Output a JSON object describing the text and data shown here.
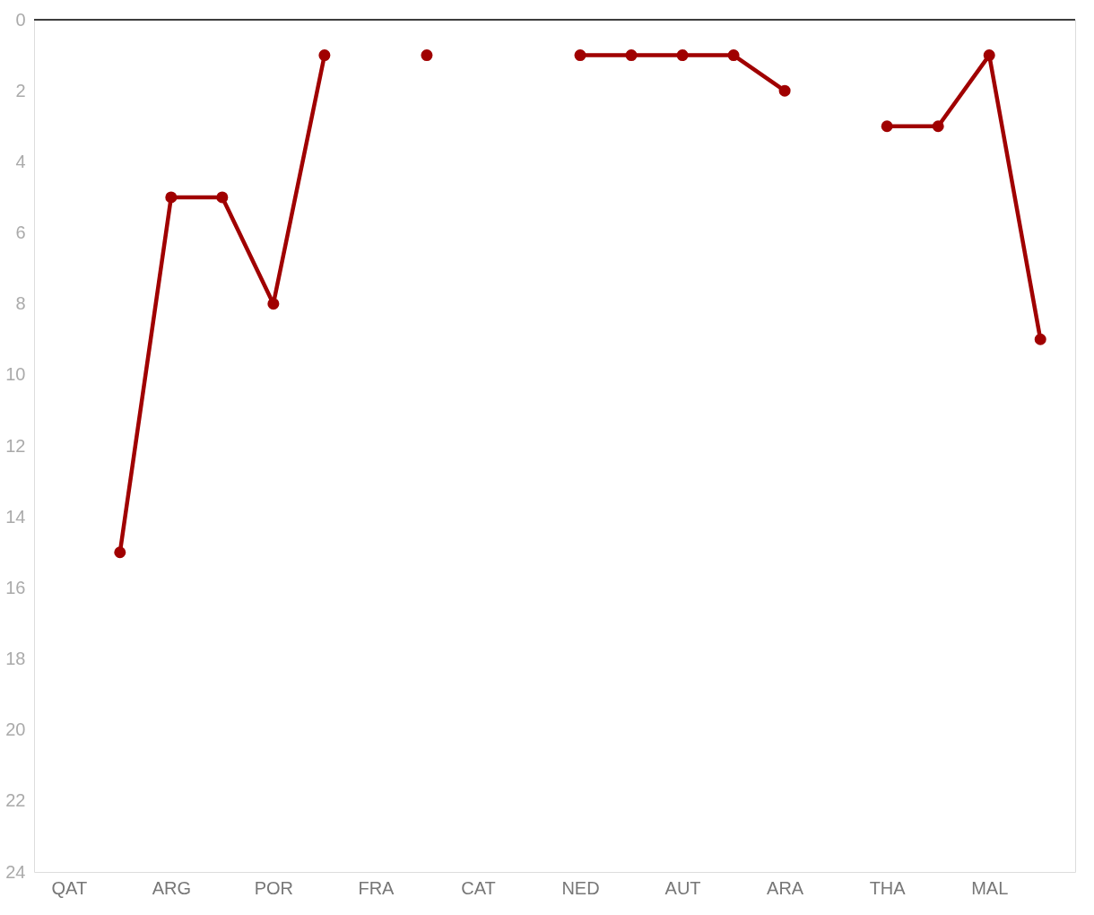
{
  "chart_data": {
    "type": "line",
    "categories": [
      "QAT",
      null,
      "ARG",
      null,
      "POR",
      null,
      "FRA",
      null,
      "CAT",
      null,
      "NED",
      null,
      "AUT",
      null,
      "ARA",
      null,
      "THA",
      null,
      "MAL",
      null
    ],
    "series": [
      {
        "color": "#a00000",
        "values": [
          null,
          15,
          5,
          5,
          8,
          1,
          null,
          1,
          null,
          null,
          1,
          1,
          1,
          1,
          2,
          null,
          3,
          3,
          1,
          9
        ]
      }
    ],
    "ylim": [
      24,
      0
    ],
    "yticks": [
      0,
      2,
      4,
      6,
      8,
      10,
      12,
      14,
      16,
      18,
      20,
      22,
      24
    ],
    "ref_lines": [
      {
        "axis": "y",
        "value": 0,
        "color": "#000000"
      }
    ],
    "marker": "circle",
    "line_style": "solid",
    "grid": false
  }
}
